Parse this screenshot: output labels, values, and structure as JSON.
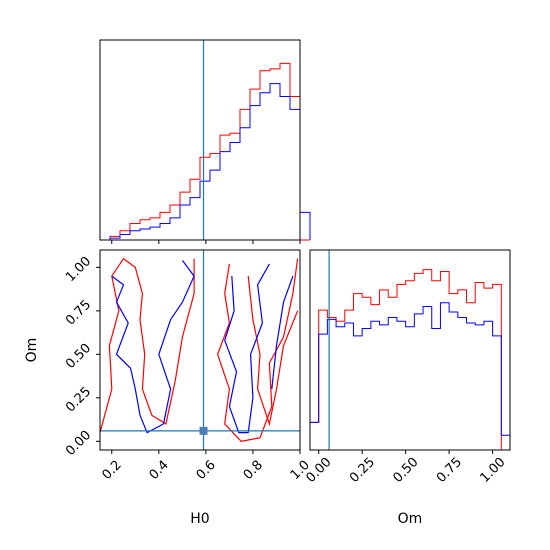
{
  "chart_data": [
    {
      "type": "histogram",
      "panel": "H0 marginal",
      "xlim": [
        0.15,
        1.0
      ],
      "truth": 0.59,
      "bins": {
        "start": 0.15,
        "width": 0.0425
      },
      "series": [
        {
          "color": "#ff0000",
          "values": [
            0.0,
            0.02,
            0.05,
            0.09,
            0.11,
            0.12,
            0.15,
            0.19,
            0.26,
            0.33,
            0.45,
            0.47,
            0.57,
            0.58,
            0.71,
            0.82,
            0.92,
            0.93,
            0.96,
            0.78,
            0.0
          ]
        },
        {
          "color": "#0000ff",
          "values": [
            0.0,
            0.01,
            0.03,
            0.05,
            0.06,
            0.07,
            0.09,
            0.12,
            0.19,
            0.23,
            0.32,
            0.38,
            0.48,
            0.53,
            0.61,
            0.73,
            0.8,
            0.85,
            0.78,
            0.71,
            0.15
          ]
        }
      ]
    },
    {
      "type": "contour",
      "panel": "H0 vs Om",
      "xlabel": "H0",
      "ylabel": "Om",
      "xlim": [
        0.15,
        1.0
      ],
      "ylim": [
        -0.05,
        1.1
      ],
      "xticks": [
        "0.2",
        "0.4",
        "0.6",
        "0.8",
        "1.0"
      ],
      "yticks": [
        "0.00",
        "0.25",
        "0.50",
        "0.75",
        "1.00"
      ],
      "truth": {
        "x": 0.59,
        "y": 0.06
      },
      "series": [
        {
          "color": "#ff0000",
          "contours": [
            [
              [
                0.15,
                0.05
              ],
              [
                0.2,
                0.3
              ],
              [
                0.19,
                0.55
              ],
              [
                0.23,
                0.75
              ],
              [
                0.2,
                0.95
              ],
              [
                0.25,
                1.05
              ],
              [
                0.3,
                1.0
              ],
              [
                0.33,
                0.85
              ],
              [
                0.32,
                0.7
              ],
              [
                0.34,
                0.5
              ],
              [
                0.33,
                0.3
              ],
              [
                0.37,
                0.15
              ],
              [
                0.43,
                0.1
              ],
              [
                0.47,
                0.35
              ],
              [
                0.5,
                0.6
              ],
              [
                0.55,
                0.85
              ],
              [
                0.55,
                1.05
              ]
            ],
            [
              [
                0.7,
                1.02
              ],
              [
                0.68,
                0.85
              ],
              [
                0.7,
                0.68
              ],
              [
                0.65,
                0.5
              ],
              [
                0.7,
                0.3
              ],
              [
                0.68,
                0.1
              ],
              [
                0.75,
                0.0
              ],
              [
                0.83,
                0.02
              ],
              [
                0.88,
                0.2
              ],
              [
                0.87,
                0.45
              ],
              [
                0.93,
                0.6
              ],
              [
                0.97,
                0.85
              ],
              [
                0.99,
                1.05
              ]
            ],
            [
              [
                0.78,
                0.95
              ],
              [
                0.8,
                0.7
              ],
              [
                0.83,
                0.5
              ],
              [
                0.82,
                0.3
              ],
              [
                0.87,
                0.1
              ],
              [
                0.9,
                0.3
              ],
              [
                0.93,
                0.55
              ],
              [
                0.99,
                0.75
              ]
            ]
          ]
        },
        {
          "color": "#0000ff",
          "contours": [
            [
              [
                0.2,
                0.95
              ],
              [
                0.25,
                0.9
              ],
              [
                0.22,
                0.8
              ],
              [
                0.27,
                0.68
              ],
              [
                0.22,
                0.5
              ],
              [
                0.28,
                0.42
              ],
              [
                0.3,
                0.3
              ],
              [
                0.32,
                0.15
              ],
              [
                0.35,
                0.05
              ],
              [
                0.42,
                0.1
              ],
              [
                0.45,
                0.3
              ],
              [
                0.4,
                0.5
              ],
              [
                0.45,
                0.7
              ],
              [
                0.5,
                0.8
              ],
              [
                0.55,
                0.95
              ],
              [
                0.5,
                1.04
              ]
            ],
            [
              [
                0.71,
                0.95
              ],
              [
                0.72,
                0.75
              ],
              [
                0.68,
                0.58
              ],
              [
                0.73,
                0.4
              ],
              [
                0.7,
                0.2
              ],
              [
                0.74,
                0.05
              ],
              [
                0.78,
                0.05
              ],
              [
                0.8,
                0.25
              ],
              [
                0.79,
                0.5
              ],
              [
                0.84,
                0.68
              ],
              [
                0.82,
                0.9
              ],
              [
                0.87,
                1.02
              ]
            ],
            [
              [
                0.88,
                0.3
              ],
              [
                0.9,
                0.55
              ],
              [
                0.93,
                0.8
              ],
              [
                0.97,
                0.95
              ]
            ]
          ]
        }
      ]
    },
    {
      "type": "histogram",
      "panel": "Om marginal",
      "xlabel": "Om",
      "xlim": [
        -0.05,
        1.1
      ],
      "xticks": [
        "0.00",
        "0.25",
        "0.50",
        "0.75",
        "1.00"
      ],
      "truth": 0.06,
      "bins": {
        "start": -0.05,
        "width": 0.05
      },
      "series": [
        {
          "color": "#ff0000",
          "values": [
            0.15,
            0.76,
            0.72,
            0.7,
            0.76,
            0.85,
            0.83,
            0.79,
            0.87,
            0.83,
            0.9,
            0.92,
            0.96,
            0.98,
            0.92,
            0.97,
            0.85,
            0.87,
            0.8,
            0.91,
            0.88,
            0.9,
            0.0
          ]
        },
        {
          "color": "#0000ff",
          "values": [
            0.15,
            0.63,
            0.71,
            0.67,
            0.69,
            0.62,
            0.66,
            0.7,
            0.68,
            0.72,
            0.7,
            0.67,
            0.74,
            0.78,
            0.66,
            0.8,
            0.75,
            0.72,
            0.69,
            0.68,
            0.7,
            0.62,
            0.08
          ]
        }
      ]
    }
  ],
  "colors": {
    "truth_line": "#1f77b4",
    "frame": "#000000"
  }
}
